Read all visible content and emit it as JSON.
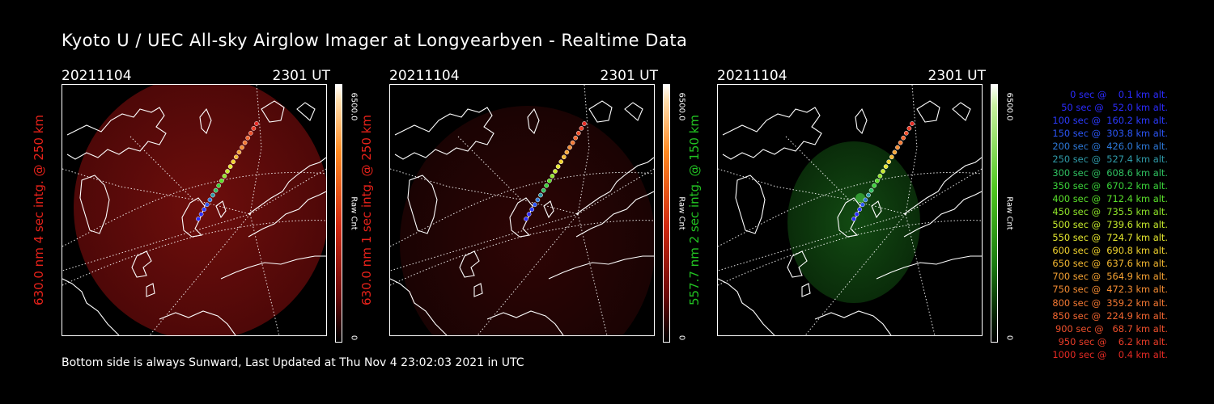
{
  "page": {
    "title": "Kyoto U / UEC All-sky Airglow Imager at Longyearbyen - Realtime Data",
    "footer": "Bottom side is always Sunward, Last Updated at Thu Nov  4 23:02:03 2021 in UTC"
  },
  "panels": [
    {
      "date": "20211104",
      "time": "2301 UT",
      "ylabel": "630.0 nm 4 sec intg. @ 250 km",
      "ylabel_color": "#e8221a",
      "colorbar_max": "6500.0",
      "colorbar_min": "0",
      "colorbar_label": "Raw Cnt",
      "colormap": "red",
      "glow_brightness": "medium"
    },
    {
      "date": "20211104",
      "time": "2301 UT",
      "ylabel": "630.0 nm 1 sec intg. @ 250 km",
      "ylabel_color": "#e8221a",
      "colorbar_max": "6500.0",
      "colorbar_min": "0",
      "colorbar_label": "Raw Cnt",
      "colormap": "red",
      "glow_brightness": "dim"
    },
    {
      "date": "20211104",
      "time": "2301 UT",
      "ylabel": "557.7 nm 2 sec intg. @ 150 km",
      "ylabel_color": "#22c322",
      "colorbar_max": "6500.0",
      "colorbar_min": "0",
      "colorbar_label": "Raw Cnt",
      "colormap": "green",
      "glow_brightness": "medium"
    }
  ],
  "legend": [
    {
      "text": "0 sec @    0.1 km alt.",
      "color": "#2b2bff"
    },
    {
      "text": "50 sec @   52.0 km alt.",
      "color": "#2b2bff"
    },
    {
      "text": "100 sec @  160.2 km alt.",
      "color": "#2b3bff"
    },
    {
      "text": "150 sec @  303.8 km alt.",
      "color": "#2b55f5"
    },
    {
      "text": "200 sec @  426.0 km alt.",
      "color": "#2d78d8"
    },
    {
      "text": "250 sec @  527.4 km alt.",
      "color": "#2f9aa8"
    },
    {
      "text": "300 sec @  608.6 km alt.",
      "color": "#2fc060"
    },
    {
      "text": "350 sec @  670.2 km alt.",
      "color": "#3ad43a"
    },
    {
      "text": "400 sec @  712.4 km alt.",
      "color": "#5ae02a"
    },
    {
      "text": "450 sec @  735.5 km alt.",
      "color": "#8fe42a"
    },
    {
      "text": "500 sec @  739.6 km alt.",
      "color": "#c6ea2c"
    },
    {
      "text": "550 sec @  724.7 km alt.",
      "color": "#e6e82e"
    },
    {
      "text": "600 sec @  690.8 km alt.",
      "color": "#f0d22e"
    },
    {
      "text": "650 sec @  637.6 km alt.",
      "color": "#f4b830"
    },
    {
      "text": "700 sec @  564.9 km alt.",
      "color": "#f5a232"
    },
    {
      "text": "750 sec @  472.3 km alt.",
      "color": "#f58c32"
    },
    {
      "text": "800 sec @  359.2 km alt.",
      "color": "#f47832"
    },
    {
      "text": "850 sec @  224.9 km alt.",
      "color": "#f26630"
    },
    {
      "text": "900 sec @   68.7 km alt.",
      "color": "#ee502c"
    },
    {
      "text": "950 sec @    6.2 km alt.",
      "color": "#ea3c28"
    },
    {
      "text": "1000 sec @    0.4 km alt.",
      "color": "#e62a24"
    }
  ]
}
